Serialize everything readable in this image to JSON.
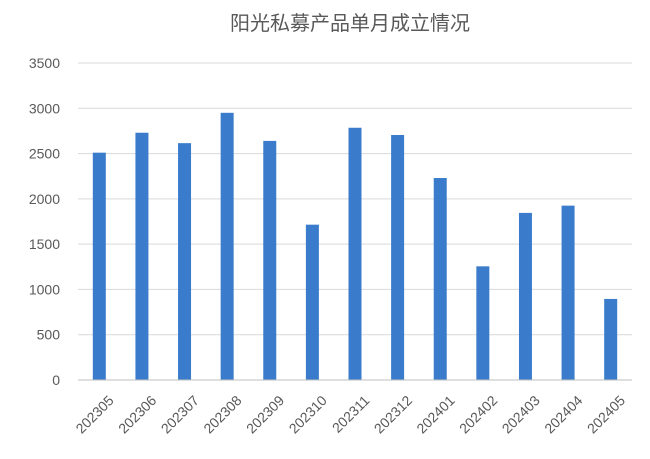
{
  "chart_data": {
    "type": "bar",
    "title": "阳光私募产品单月成立情况",
    "xlabel": "",
    "ylabel": "",
    "categories": [
      "202305",
      "202306",
      "202307",
      "202308",
      "202309",
      "202310",
      "202311",
      "202312",
      "202401",
      "202402",
      "202403",
      "202404",
      "202405"
    ],
    "values": [
      2510,
      2730,
      2615,
      2950,
      2640,
      1715,
      2785,
      2705,
      2230,
      1255,
      1845,
      1925,
      895
    ],
    "ylim": [
      0,
      3500
    ],
    "yticks": [
      0,
      500,
      1000,
      1500,
      2000,
      2500,
      3000,
      3500
    ],
    "grid": true,
    "legend": "none",
    "bar_color": "#3A7CCB"
  }
}
